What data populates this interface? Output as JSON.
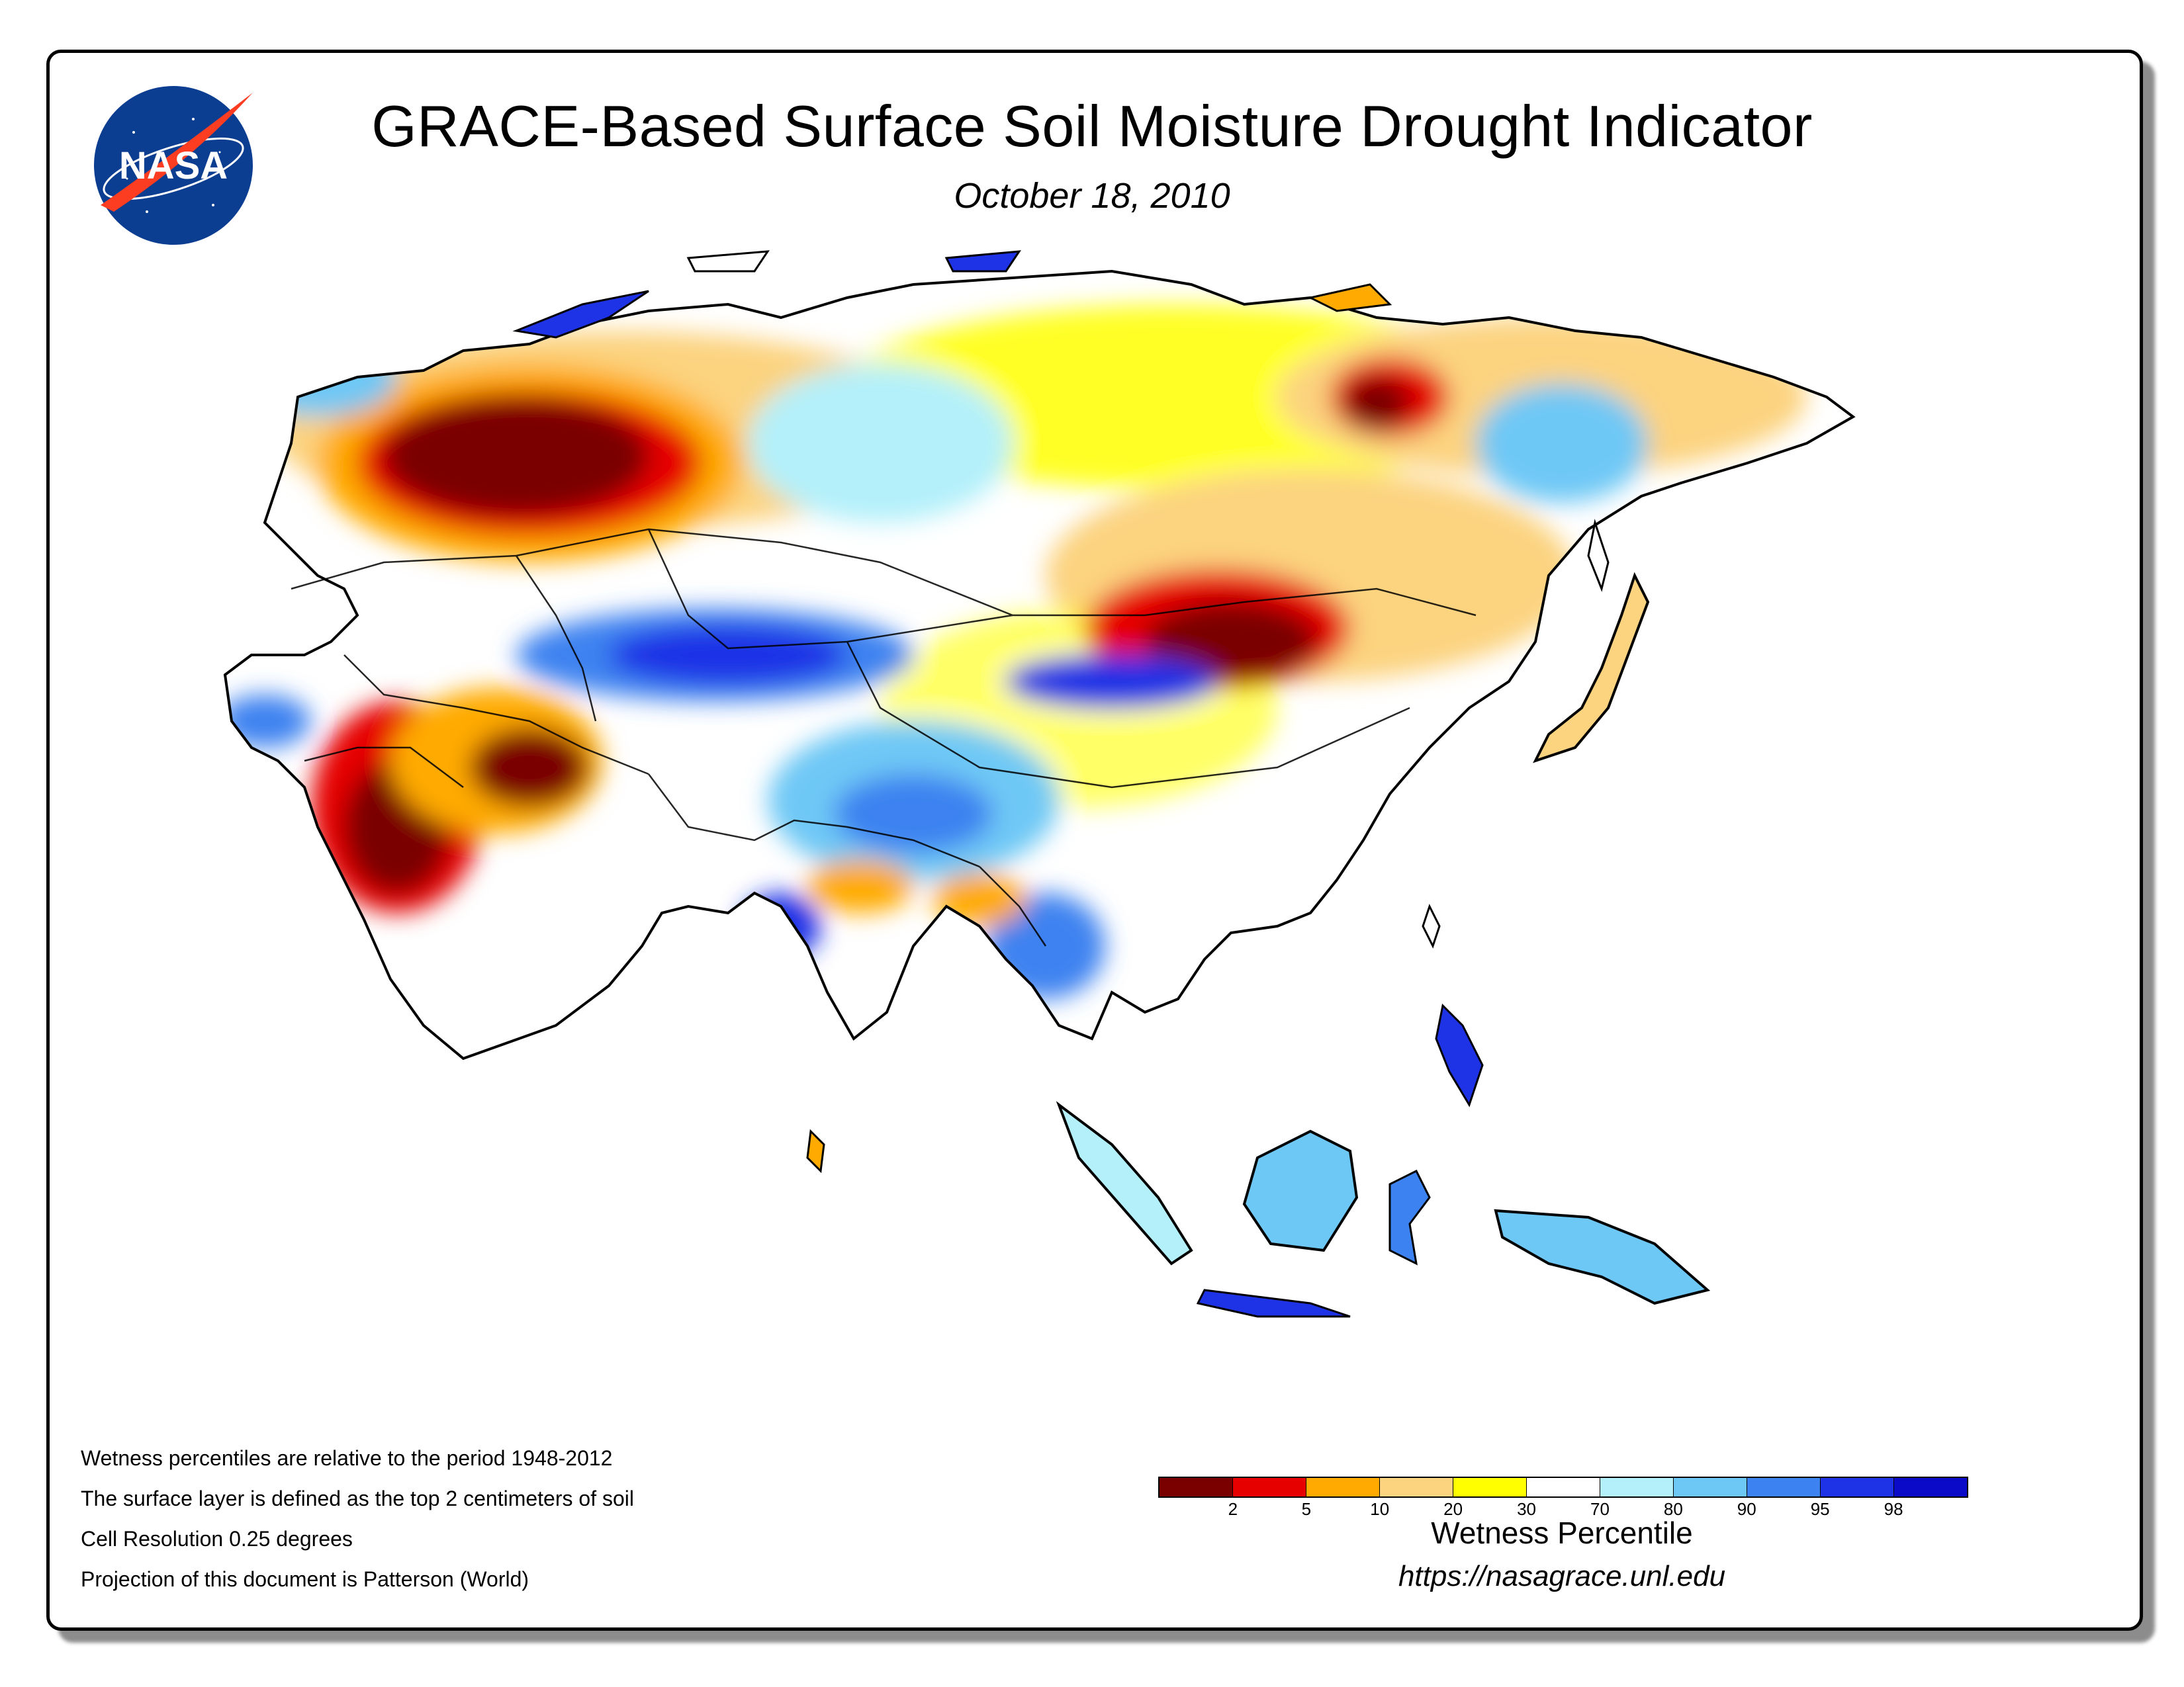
{
  "header": {
    "title": "GRACE-Based Surface Soil Moisture Drought Indicator",
    "date": "October 18, 2010",
    "logo_text": "NASA"
  },
  "notes": [
    "Wetness percentiles are relative to the period 1948-2012",
    "The surface layer is defined as the top 2 centimeters of soil",
    "Cell Resolution 0.25 degrees",
    "Projection of this document is Patterson (World)"
  ],
  "legend": {
    "title": "Wetness Percentile",
    "ticks": [
      "2",
      "5",
      "10",
      "20",
      "30",
      "70",
      "80",
      "90",
      "95",
      "98"
    ],
    "colors": [
      "#7a0000",
      "#e60000",
      "#ffaa00",
      "#fcd37f",
      "#ffff00",
      "#ffffff",
      "#b4f0fa",
      "#6ec8f5",
      "#3c82f0",
      "#1e32e6",
      "#0a0ac8"
    ]
  },
  "footer": {
    "url": "https://nasagrace.unl.edu"
  },
  "map": {
    "region": "Asia",
    "land_base_color": "#ffffff",
    "outline_color": "#000000"
  }
}
